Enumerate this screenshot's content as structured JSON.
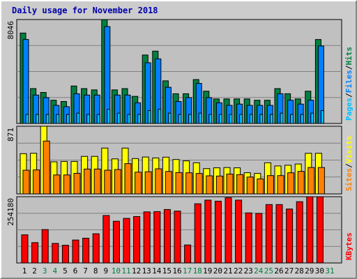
{
  "title": "Daily usage for November 2018",
  "colors": {
    "pages": "#00c0ff",
    "files": "#0080ff",
    "hits": "#008040",
    "visits": "#ffff00",
    "sites": "#ff8000",
    "kbytes": "#ff0000",
    "separator": "#000000",
    "weekend_day": "#008040",
    "weekday": "#000000"
  },
  "chart_data": [
    {
      "type": "bar",
      "panel": "top",
      "x": [
        1,
        2,
        3,
        4,
        5,
        6,
        7,
        8,
        9,
        10,
        11,
        12,
        13,
        14,
        15,
        16,
        17,
        18,
        19,
        20,
        21,
        22,
        23,
        24,
        25,
        26,
        27,
        28,
        29,
        30
      ],
      "ymax_label": "8046",
      "ylim": [
        0,
        8046
      ],
      "right_labels": [
        "Pages",
        "/",
        "Files",
        "/",
        "Hits"
      ],
      "series": [
        {
          "name": "Hits",
          "values": [
            7000,
            2700,
            2400,
            1800,
            1700,
            2900,
            2700,
            2600,
            8046,
            2600,
            2700,
            2100,
            5300,
            5600,
            3300,
            2300,
            2300,
            3400,
            2500,
            1900,
            1900,
            1900,
            1900,
            1800,
            1800,
            2700,
            2300,
            1900,
            2500,
            6500
          ]
        },
        {
          "name": "Files",
          "values": [
            6500,
            2200,
            2000,
            1400,
            1300,
            2300,
            2200,
            2200,
            7500,
            2200,
            2200,
            1600,
            4700,
            5000,
            2800,
            1700,
            2000,
            3100,
            2000,
            1600,
            1400,
            1500,
            1400,
            1400,
            1400,
            2300,
            1800,
            1500,
            1800,
            6000
          ]
        },
        {
          "name": "Pages",
          "values": [
            700,
            700,
            700,
            700,
            700,
            800,
            700,
            700,
            1100,
            800,
            700,
            700,
            1000,
            1100,
            800,
            700,
            700,
            800,
            700,
            700,
            700,
            700,
            700,
            700,
            700,
            800,
            700,
            700,
            800,
            1000
          ]
        }
      ]
    },
    {
      "type": "bar",
      "panel": "middle",
      "x": [
        1,
        2,
        3,
        4,
        5,
        6,
        7,
        8,
        9,
        10,
        11,
        12,
        13,
        14,
        15,
        16,
        17,
        18,
        19,
        20,
        21,
        22,
        23,
        24,
        25,
        26,
        27,
        28,
        29,
        30
      ],
      "ymax_label": "871",
      "ylim": [
        0,
        871
      ],
      "right_labels": [
        "Sites",
        "/",
        "Visits"
      ],
      "series": [
        {
          "name": "Visits",
          "values": [
            518,
            523,
            871,
            413,
            418,
            418,
            483,
            483,
            590,
            451,
            590,
            455,
            475,
            463,
            473,
            443,
            425,
            401,
            326,
            336,
            339,
            336,
            273,
            264,
            401,
            360,
            369,
            385,
            523,
            523
          ]
        },
        {
          "name": "Sites",
          "values": [
            305,
            309,
            680,
            244,
            244,
            265,
            320,
            320,
            305,
            314,
            390,
            280,
            285,
            323,
            289,
            275,
            272,
            263,
            233,
            230,
            255,
            248,
            217,
            193,
            236,
            236,
            272,
            290,
            340,
            340
          ]
        }
      ]
    },
    {
      "type": "bar",
      "panel": "bottom",
      "x": [
        1,
        2,
        3,
        4,
        5,
        6,
        7,
        8,
        9,
        10,
        11,
        12,
        13,
        14,
        15,
        16,
        17,
        18,
        19,
        20,
        21,
        22,
        23,
        24,
        25,
        26,
        27,
        28,
        29,
        30
      ],
      "ymax_label": "254180",
      "ylim": [
        0,
        254180
      ],
      "right_labels": [
        "KBytes"
      ],
      "series": [
        {
          "name": "KBytes",
          "values": [
            108000,
            78000,
            128000,
            75000,
            68000,
            88000,
            95000,
            112000,
            182000,
            160000,
            171000,
            178000,
            196000,
            197000,
            205000,
            199000,
            69000,
            227000,
            241000,
            237000,
            250000,
            241000,
            192000,
            190000,
            224000,
            224000,
            207000,
            235000,
            254180,
            254180
          ]
        }
      ]
    }
  ],
  "days": [
    {
      "label": "1",
      "weekend": false
    },
    {
      "label": "2",
      "weekend": false
    },
    {
      "label": "3",
      "weekend": true
    },
    {
      "label": "4",
      "weekend": true
    },
    {
      "label": "5",
      "weekend": false
    },
    {
      "label": "6",
      "weekend": false
    },
    {
      "label": "7",
      "weekend": false
    },
    {
      "label": "8",
      "weekend": false
    },
    {
      "label": "9",
      "weekend": false
    },
    {
      "label": "10",
      "weekend": true
    },
    {
      "label": "11",
      "weekend": true
    },
    {
      "label": "12",
      "weekend": false
    },
    {
      "label": "13",
      "weekend": false
    },
    {
      "label": "14",
      "weekend": false
    },
    {
      "label": "15",
      "weekend": false
    },
    {
      "label": "16",
      "weekend": false
    },
    {
      "label": "17",
      "weekend": true
    },
    {
      "label": "18",
      "weekend": true
    },
    {
      "label": "19",
      "weekend": false
    },
    {
      "label": "20",
      "weekend": false
    },
    {
      "label": "21",
      "weekend": false
    },
    {
      "label": "22",
      "weekend": false
    },
    {
      "label": "23",
      "weekend": false
    },
    {
      "label": "24",
      "weekend": true
    },
    {
      "label": "25",
      "weekend": true
    },
    {
      "label": "26",
      "weekend": false
    },
    {
      "label": "27",
      "weekend": false
    },
    {
      "label": "28",
      "weekend": false
    },
    {
      "label": "29",
      "weekend": false
    },
    {
      "label": "30",
      "weekend": false
    },
    {
      "label": "31",
      "weekend": true
    }
  ]
}
